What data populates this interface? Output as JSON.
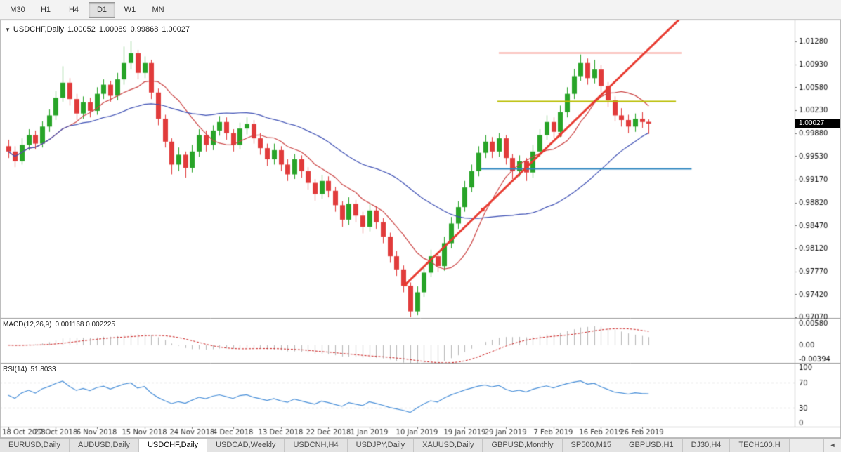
{
  "toolbar": {
    "timeframes": [
      "M30",
      "H1",
      "H4",
      "D1",
      "W1",
      "MN"
    ],
    "active": "D1"
  },
  "chart_data": {
    "type": "candlestick",
    "title": "USDCHF,Daily",
    "ohlc_display": {
      "open": "1.00052",
      "high": "1.00089",
      "low": "0.99868",
      "close": "1.00027"
    },
    "current_price": "1.00027",
    "price_axis_labels": [
      "1.01280",
      "1.00930",
      "1.00580",
      "1.00230",
      "0.99880",
      "0.99530",
      "0.99170",
      "0.98820",
      "0.98470",
      "0.98120",
      "0.97770",
      "0.97420",
      "0.97070"
    ],
    "date_labels": [
      [
        0,
        "18 Oct 2018"
      ],
      [
        7,
        "27 Oct 2018"
      ],
      [
        13,
        "6 Nov 2018"
      ],
      [
        20,
        "15 Nov 2018"
      ],
      [
        27,
        "24 Nov 2018"
      ],
      [
        33,
        "4 Dec 2018"
      ],
      [
        40,
        "13 Dec 2018"
      ],
      [
        47,
        "22 Dec 2018"
      ],
      [
        53,
        "1 Jan 2019"
      ],
      [
        60,
        "10 Jan 2019"
      ],
      [
        67,
        "19 Jan 2019"
      ],
      [
        73,
        "29 Jan 2019"
      ],
      [
        80,
        "7 Feb 2019"
      ],
      [
        87,
        "16 Feb 2019"
      ],
      [
        93,
        "26 Feb 2019"
      ]
    ],
    "colors": {
      "bull": "#28a428",
      "bear": "#e13b3b"
    },
    "candles": [
      [
        0.9968,
        0.9978,
        0.995,
        0.996
      ],
      [
        0.996,
        0.9968,
        0.9936,
        0.9945
      ],
      [
        0.9945,
        0.998,
        0.994,
        0.997
      ],
      [
        0.997,
        0.9994,
        0.9962,
        0.9985
      ],
      [
        0.9985,
        0.9992,
        0.9963,
        0.9972
      ],
      [
        0.9972,
        1.0006,
        0.9966,
        0.9998
      ],
      [
        0.9998,
        1.0024,
        0.999,
        1.0015
      ],
      [
        1.0015,
        1.0052,
        1.0008,
        1.0042
      ],
      [
        1.0042,
        1.009,
        1.0036,
        1.0065
      ],
      [
        1.0065,
        1.0072,
        1.003,
        1.004
      ],
      [
        1.004,
        1.0048,
        1.0008,
        1.0018
      ],
      [
        1.0018,
        1.0044,
        1.001,
        1.0035
      ],
      [
        1.0035,
        1.0042,
        1.0012,
        1.0022
      ],
      [
        1.0022,
        1.0058,
        1.0016,
        1.0048
      ],
      [
        1.0048,
        1.007,
        1.004,
        1.0062
      ],
      [
        1.0062,
        1.0068,
        1.0036,
        1.0045
      ],
      [
        1.0045,
        1.008,
        1.0038,
        1.007
      ],
      [
        1.007,
        1.012,
        1.0062,
        1.0095
      ],
      [
        1.0095,
        1.0128,
        1.0085,
        1.011
      ],
      [
        1.011,
        1.0115,
        1.007,
        1.008
      ],
      [
        1.008,
        1.0105,
        1.0072,
        1.0095
      ],
      [
        1.0095,
        1.01,
        1.004,
        1.005
      ],
      [
        1.005,
        1.0056,
        1.0,
        1.001
      ],
      [
        1.001,
        1.0016,
        0.9966,
        0.9975
      ],
      [
        0.9975,
        0.998,
        0.9925,
        0.994
      ],
      [
        0.994,
        0.9966,
        0.993,
        0.9955
      ],
      [
        0.9955,
        0.996,
        0.992,
        0.9935
      ],
      [
        0.9935,
        0.997,
        0.9928,
        0.996
      ],
      [
        0.996,
        0.9994,
        0.9952,
        0.9985
      ],
      [
        0.9985,
        0.9992,
        0.996,
        0.997
      ],
      [
        0.997,
        1.0,
        0.9962,
        0.9992
      ],
      [
        0.9992,
        1.0014,
        0.9984,
        1.0005
      ],
      [
        1.0005,
        1.0012,
        0.9978,
        0.9988
      ],
      [
        0.9988,
        0.9994,
        0.996,
        0.997
      ],
      [
        0.997,
        1.0004,
        0.9963,
        0.9995
      ],
      [
        0.9995,
        1.0012,
        0.9986,
        1.0002
      ],
      [
        1.0002,
        1.0008,
        0.9972,
        0.998
      ],
      [
        0.998,
        0.9988,
        0.9955,
        0.9965
      ],
      [
        0.9965,
        0.9972,
        0.9938,
        0.9948
      ],
      [
        0.9948,
        0.9972,
        0.994,
        0.9962
      ],
      [
        0.9962,
        0.9968,
        0.993,
        0.994
      ],
      [
        0.994,
        0.9948,
        0.9915,
        0.9925
      ],
      [
        0.9925,
        0.9956,
        0.9918,
        0.9948
      ],
      [
        0.9948,
        0.9954,
        0.992,
        0.993
      ],
      [
        0.993,
        0.9936,
        0.9902,
        0.9912
      ],
      [
        0.9912,
        0.9918,
        0.9885,
        0.9895
      ],
      [
        0.9895,
        0.9924,
        0.9888,
        0.9915
      ],
      [
        0.9915,
        0.9922,
        0.989,
        0.99
      ],
      [
        0.99,
        0.9906,
        0.9868,
        0.9878
      ],
      [
        0.9878,
        0.9884,
        0.9845,
        0.9856
      ],
      [
        0.9856,
        0.989,
        0.9848,
        0.988
      ],
      [
        0.988,
        0.9886,
        0.9852,
        0.9862
      ],
      [
        0.9862,
        0.9868,
        0.9835,
        0.9845
      ],
      [
        0.9845,
        0.988,
        0.9838,
        0.987
      ],
      [
        0.987,
        0.9876,
        0.9842,
        0.9852
      ],
      [
        0.9852,
        0.9858,
        0.982,
        0.983
      ],
      [
        0.983,
        0.9836,
        0.979,
        0.98
      ],
      [
        0.98,
        0.9808,
        0.977,
        0.978
      ],
      [
        0.978,
        0.9786,
        0.9745,
        0.9755
      ],
      [
        0.9755,
        0.976,
        0.9707,
        0.9716
      ],
      [
        0.9716,
        0.9754,
        0.971,
        0.9745
      ],
      [
        0.9745,
        0.9784,
        0.9738,
        0.9775
      ],
      [
        0.9775,
        0.981,
        0.9768,
        0.98
      ],
      [
        0.98,
        0.9806,
        0.9776,
        0.9785
      ],
      [
        0.9785,
        0.983,
        0.9778,
        0.982
      ],
      [
        0.982,
        0.986,
        0.9812,
        0.985
      ],
      [
        0.985,
        0.9884,
        0.9842,
        0.9875
      ],
      [
        0.9875,
        0.9915,
        0.9868,
        0.9905
      ],
      [
        0.9905,
        0.994,
        0.9898,
        0.993
      ],
      [
        0.993,
        0.9968,
        0.9922,
        0.9958
      ],
      [
        0.9958,
        0.9985,
        0.995,
        0.9975
      ],
      [
        0.9975,
        0.9982,
        0.995,
        0.996
      ],
      [
        0.996,
        0.9988,
        0.9952,
        0.998
      ],
      [
        0.998,
        0.9985,
        0.994,
        0.995
      ],
      [
        0.995,
        0.9956,
        0.9918,
        0.993
      ],
      [
        0.993,
        0.9954,
        0.9922,
        0.9945
      ],
      [
        0.9945,
        0.995,
        0.9915,
        0.9928
      ],
      [
        0.9928,
        0.997,
        0.992,
        0.996
      ],
      [
        0.996,
        0.9994,
        0.9952,
        0.9985
      ],
      [
        0.9985,
        1.0015,
        0.9978,
        1.0005
      ],
      [
        1.0005,
        1.0012,
        0.998,
        0.999
      ],
      [
        0.999,
        1.003,
        0.9982,
        1.002
      ],
      [
        1.002,
        1.0058,
        1.0012,
        1.0048
      ],
      [
        1.0048,
        1.0086,
        1.004,
        1.0075
      ],
      [
        1.0075,
        1.0108,
        1.0068,
        1.0095
      ],
      [
        1.0095,
        1.0102,
        1.0062,
        1.0072
      ],
      [
        1.0072,
        1.01,
        1.0064,
        1.0085
      ],
      [
        1.0085,
        1.0092,
        1.005,
        1.006
      ],
      [
        1.006,
        1.0066,
        1.0028,
        1.0038
      ],
      [
        1.0038,
        1.0044,
        1.0006,
        1.0015
      ],
      [
        1.0015,
        1.0026,
        0.9998,
        1.0008
      ],
      [
        1.0008,
        1.0016,
        0.9988,
        0.9998
      ],
      [
        0.9998,
        1.0018,
        0.999,
        1.001
      ],
      [
        1.001,
        1.002,
        0.9996,
        1.0005
      ],
      [
        1.00052,
        1.00089,
        0.99868,
        1.00027
      ]
    ],
    "moving_averages": [
      {
        "period": 10,
        "color": "#cc4444"
      },
      {
        "period": 30,
        "color": "#3f51b5"
      }
    ],
    "trendline": {
      "i1": 58.3,
      "p1": 0.9757,
      "i2": 81,
      "p2": 0.99855,
      "ray": true,
      "color": "#e8392f",
      "width": 3
    },
    "hlines": [
      {
        "price": 1.0111,
        "i1": 72.0,
        "i2": 98.8,
        "color": "#f4655a",
        "width": 1.5
      },
      {
        "price": 1.0037,
        "i1": 71.8,
        "i2": 98.0,
        "color": "#b9bd00",
        "width": 2
      },
      {
        "price": 0.9934,
        "i1": 69.4,
        "i2": 100.3,
        "color": "#2e86c0",
        "width": 2
      }
    ],
    "indicators": {
      "macd": {
        "label": "MACD(12,26,9)",
        "current_values": "0.001168 0.002225",
        "fast": 12,
        "slow": 26,
        "signal": 9,
        "axis_labels": [
          "0.00580",
          "0.00",
          "-0.00394"
        ],
        "histogram_color": "#b6b6b6",
        "signal_color": "#cc2222"
      },
      "rsi": {
        "label": "RSI(14)",
        "current_value": "51.8033",
        "period": 14,
        "levels": [
          70,
          30
        ],
        "axis_labels": [
          "100",
          "70",
          "30",
          "0"
        ],
        "line_color": "#4a90d9",
        "level_color": "#c0c0c0"
      }
    }
  },
  "tabs": {
    "items": [
      "EURUSD,Daily",
      "AUDUSD,Daily",
      "USDCHF,Daily",
      "USDCAD,Weekly",
      "USDCNH,H4",
      "USDJPY,Daily",
      "XAUUSD,Daily",
      "GBPUSD,Monthly",
      "SP500,M15",
      "GBPUSD,H1",
      "DJ30,H4",
      "TECH100,H"
    ],
    "active_index": 2,
    "scroll_left_icon": "◄"
  }
}
